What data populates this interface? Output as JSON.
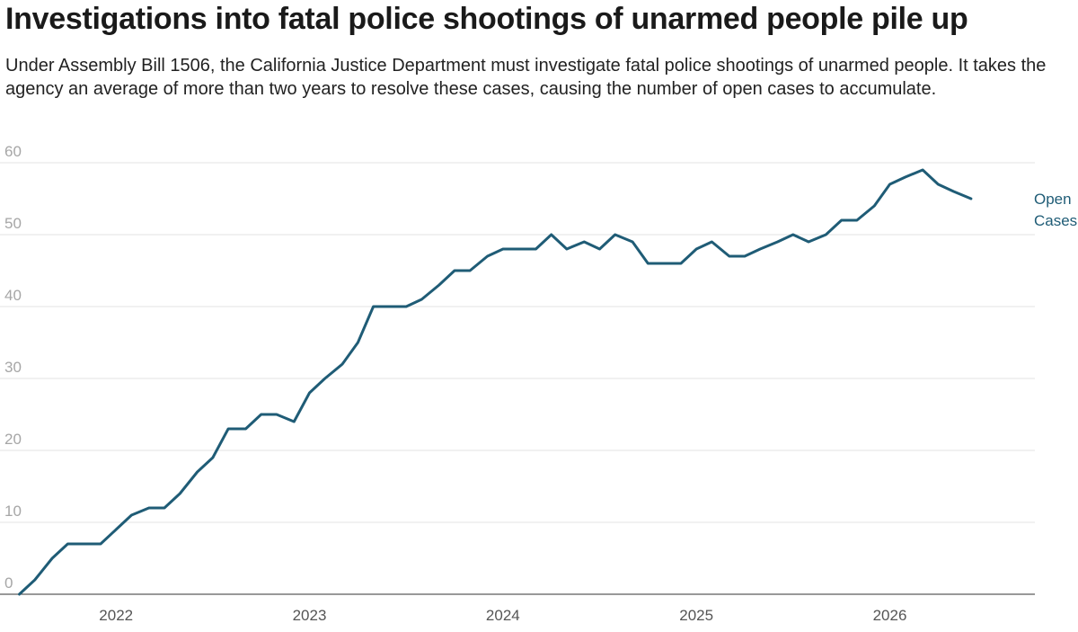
{
  "header": {
    "title": "Investigations into fatal police shootings of unarmed people pile up",
    "subtitle": "Under Assembly Bill 1506, the California Justice Department must investigate fatal police shootings of unarmed people. It takes the agency an average of more than two years to resolve these cases, causing the number of open cases to accumulate."
  },
  "colors": {
    "line": "#1f5c76",
    "grid": "#e3e3e3",
    "axis": "#333333"
  },
  "chart_data": {
    "type": "line",
    "title": "Investigations into fatal police shootings of unarmed people pile up",
    "xlabel": "",
    "ylabel": "",
    "ylim": [
      0,
      60
    ],
    "yticks": [
      0,
      10,
      20,
      30,
      40,
      50,
      60
    ],
    "xlim": [
      2021.4,
      2026.75
    ],
    "xticks": [
      2022,
      2023,
      2024,
      2025,
      2026
    ],
    "xtick_labels": [
      "2022",
      "2023",
      "2024",
      "2025",
      "2026"
    ],
    "grid": true,
    "legend": "inline-right",
    "series": [
      {
        "name": "Open Cases",
        "x": [
          2021.5,
          2021.58,
          2021.67,
          2021.75,
          2021.83,
          2021.92,
          2022.0,
          2022.08,
          2022.17,
          2022.25,
          2022.33,
          2022.42,
          2022.5,
          2022.58,
          2022.67,
          2022.75,
          2022.83,
          2022.92,
          2023.0,
          2023.08,
          2023.17,
          2023.25,
          2023.33,
          2023.42,
          2023.5,
          2023.58,
          2023.67,
          2023.75,
          2023.83,
          2023.92,
          2024.0,
          2024.08,
          2024.17,
          2024.25,
          2024.33,
          2024.42,
          2024.5,
          2024.58,
          2024.67,
          2024.75,
          2024.83,
          2024.92,
          2025.0,
          2025.08,
          2025.17,
          2025.25,
          2025.33,
          2025.42,
          2025.5,
          2025.58,
          2025.67,
          2025.75,
          2025.83,
          2025.92,
          2026.0,
          2026.08,
          2026.17,
          2026.25,
          2026.33,
          2026.42
        ],
        "values": [
          0,
          2,
          5,
          7,
          7,
          7,
          9,
          11,
          12,
          12,
          14,
          17,
          19,
          23,
          23,
          25,
          25,
          24,
          28,
          30,
          32,
          35,
          40,
          40,
          40,
          41,
          43,
          45,
          45,
          47,
          48,
          48,
          48,
          50,
          48,
          49,
          48,
          50,
          49,
          46,
          46,
          46,
          48,
          49,
          47,
          47,
          48,
          49,
          50,
          49,
          50,
          52,
          52,
          54,
          57,
          58,
          59,
          57,
          56,
          55
        ]
      }
    ],
    "series_label_lines": [
      "Open",
      "Cases"
    ]
  }
}
